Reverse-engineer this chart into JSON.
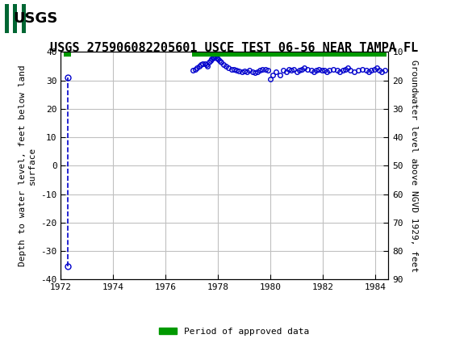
{
  "title": "USGS 275906082205601 USCE TEST 06-56 NEAR TAMPA FL",
  "ylabel_left": "Depth to water level, feet below land\nsurface",
  "ylabel_right": "Groundwater level above NGVD 1929, feet",
  "ylim_left": [
    -40,
    40
  ],
  "ylim_right": [
    90,
    10
  ],
  "xlim": [
    1972,
    1984.5
  ],
  "xticks": [
    1972,
    1974,
    1976,
    1978,
    1980,
    1982,
    1984
  ],
  "yticks_left": [
    -40,
    -30,
    -20,
    -10,
    0,
    10,
    20,
    30,
    40
  ],
  "yticks_right": [
    90,
    80,
    70,
    60,
    50,
    40,
    30,
    20,
    10
  ],
  "header_color": "#006633",
  "background_color": "#ffffff",
  "plot_bg_color": "#ffffff",
  "grid_color": "#c0c0c0",
  "data_color": "#0000cc",
  "approved_bar_color": "#009900",
  "early_points_x": [
    1972.25,
    1972.25
  ],
  "early_points_y": [
    -35.5,
    31.0
  ],
  "approved_start_x": 1972.1,
  "approved_end_x": 1972.38,
  "main_data_x": [
    1977.05,
    1977.12,
    1977.2,
    1977.28,
    1977.35,
    1977.42,
    1977.5,
    1977.55,
    1977.6,
    1977.65,
    1977.7,
    1977.75,
    1977.8,
    1977.85,
    1977.9,
    1977.95,
    1978.0,
    1978.05,
    1978.1,
    1978.2,
    1978.3,
    1978.4,
    1978.5,
    1978.6,
    1978.7,
    1978.8,
    1978.9,
    1979.0,
    1979.1,
    1979.2,
    1979.3,
    1979.4,
    1979.5,
    1979.6,
    1979.7,
    1979.8,
    1979.9,
    1980.0,
    1980.1,
    1980.2,
    1980.35,
    1980.5,
    1980.6,
    1980.7,
    1980.8,
    1980.9,
    1981.0,
    1981.1,
    1981.2,
    1981.3,
    1981.4,
    1981.55,
    1981.65,
    1981.75,
    1981.85,
    1981.95,
    1982.05,
    1982.15,
    1982.25,
    1982.4,
    1982.55,
    1982.65,
    1982.75,
    1982.85,
    1982.95,
    1983.05,
    1983.2,
    1983.35,
    1983.5,
    1983.65,
    1983.75,
    1983.85,
    1983.95,
    1984.05,
    1984.15,
    1984.25,
    1984.35
  ],
  "main_data_y": [
    33.5,
    33.8,
    34.5,
    35.0,
    35.5,
    35.8,
    36.0,
    35.5,
    35.0,
    36.5,
    37.0,
    37.5,
    37.8,
    38.2,
    38.5,
    38.0,
    37.5,
    37.0,
    36.5,
    35.5,
    35.0,
    34.5,
    34.0,
    33.8,
    33.5,
    33.2,
    33.0,
    33.2,
    33.0,
    33.5,
    33.0,
    32.8,
    33.0,
    33.5,
    33.8,
    34.0,
    33.5,
    30.5,
    32.0,
    33.0,
    32.0,
    33.5,
    33.0,
    34.0,
    33.5,
    34.0,
    33.0,
    33.5,
    34.0,
    34.5,
    34.0,
    33.5,
    33.0,
    33.5,
    34.0,
    33.5,
    33.5,
    33.0,
    33.5,
    34.0,
    33.5,
    33.0,
    33.5,
    34.0,
    34.5,
    33.5,
    33.0,
    33.5,
    34.0,
    33.5,
    33.0,
    33.5,
    34.0,
    34.5,
    33.5,
    33.0,
    33.5
  ],
  "approved_main_start": 1977.0,
  "approved_main_end": 1984.42,
  "legend_label": "Period of approved data",
  "title_fontsize": 11,
  "axis_fontsize": 8,
  "tick_fontsize": 8
}
